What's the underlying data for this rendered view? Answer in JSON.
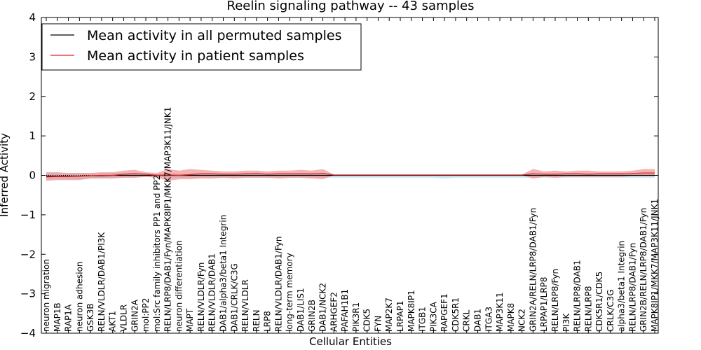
{
  "chart_data": {
    "type": "line",
    "title": "Reelin signaling pathway -- 43 samples",
    "xlabel": "Cellular Entities",
    "ylabel": "Inferred Activity",
    "ylim": [
      -4,
      4
    ],
    "yticks": [
      -4,
      -3,
      -2,
      -1,
      0,
      1,
      2,
      3,
      4
    ],
    "ytick_labels": [
      "−4",
      "−3",
      "−2",
      "−1",
      "0",
      "1",
      "2",
      "3",
      "4"
    ],
    "legend_position": "top-left",
    "categories": [
      "neuron migration",
      "MAP1B",
      "RAP1A",
      "neuron adhesion",
      "GSK3B",
      "RELN/VLDLR/DAB1/PI3K",
      "AKT1",
      "VLDLR",
      "GRIN2A",
      "mol:PP2",
      "mol:Src family inhibitors PP1 and PP2",
      "RELN/LRP8/DAB1/Fyn/MAPK8IP1/MKK7/MAP3K11/JNK1",
      "neuron differentiation",
      "MAPT",
      "RELN/VLDLR/Fyn",
      "RELN/VLDLR/DAB1",
      "DAB1/alpha3/beta1 Integrin",
      "DAB1/CRLK/C3G",
      "RELN/VLDLR",
      "RELN",
      "LRP8",
      "RELN/VLDLR/DAB1/Fyn",
      "long-term memory",
      "DAB1/LIS1",
      "GRIN2B",
      "DAB1/NCK2",
      "ARHGEF2",
      "PAFAH1B1",
      "PIK3R1",
      "CDK5",
      "FYN",
      "MAP2K7",
      "LRPAP1",
      "MAPK8IP1",
      "ITGB1",
      "PIK3CA",
      "RAPGEF1",
      "CDK5R1",
      "CRKL",
      "DAB1",
      "ITGA3",
      "MAP3K11",
      "MAPK8",
      "NCK2",
      "GRIN2A/RELN/LRP8/DAB1/Fyn",
      "LRPAP1/LRP8",
      "RELN/LRP8/Fyn",
      "PI3K",
      "RELN/LRP8/DAB1",
      "RELN/LRP8",
      "CDK5R1/CDK5",
      "CRLK/C3G",
      "alpha3/beta1 Integrin",
      "RELN/LRP8/DAB1/Fyn",
      "GRIN2B/RELN/LRP8/DAB1/Fyn",
      "MAPK8IP1/MKK7/MAP3K11/JNK1"
    ],
    "series": [
      {
        "name": "Mean activity in all permuted samples",
        "color": "#000000",
        "values": [
          -0.02,
          -0.02,
          -0.02,
          -0.02,
          -0.01,
          -0.01,
          0.0,
          0.0,
          0.0,
          0.0,
          0.0,
          0.0,
          0.0,
          0.0,
          0.0,
          0.0,
          0.0,
          0.0,
          0.0,
          0.0,
          0.0,
          0.0,
          0.0,
          0.0,
          0.0,
          0.0,
          0.0,
          0.0,
          0.0,
          0.0,
          0.0,
          0.0,
          0.0,
          0.0,
          0.0,
          0.0,
          0.0,
          0.0,
          0.0,
          0.0,
          0.0,
          0.0,
          0.0,
          0.0,
          0.0,
          0.0,
          0.0,
          0.0,
          0.0,
          0.0,
          0.0,
          0.0,
          0.0,
          0.0,
          0.0,
          0.0
        ],
        "band_upper": [
          0.06,
          0.06,
          0.06,
          0.06,
          0.06,
          0.06,
          0.06,
          0.06,
          0.06,
          0.04,
          0.04,
          0.06,
          0.04,
          0.04,
          0.04,
          0.04,
          0.04,
          0.04,
          0.04,
          0.04,
          0.04,
          0.04,
          0.04,
          0.04,
          0.04,
          0.04,
          0.02,
          0.02,
          0.02,
          0.02,
          0.02,
          0.02,
          0.02,
          0.02,
          0.02,
          0.02,
          0.02,
          0.02,
          0.02,
          0.02,
          0.02,
          0.02,
          0.02,
          0.02,
          0.02,
          0.02,
          0.02,
          0.02,
          0.02,
          0.02,
          0.02,
          0.02,
          0.02,
          0.02,
          0.02,
          0.02
        ],
        "band_lower": [
          -0.1,
          -0.1,
          -0.1,
          -0.1,
          -0.08,
          -0.08,
          -0.06,
          -0.06,
          -0.06,
          -0.04,
          -0.04,
          -0.06,
          -0.06,
          -0.06,
          -0.06,
          -0.06,
          -0.06,
          -0.06,
          -0.06,
          -0.06,
          -0.06,
          -0.06,
          -0.06,
          -0.06,
          -0.06,
          -0.06,
          -0.06,
          -0.06,
          -0.06,
          -0.06,
          -0.06,
          -0.06,
          -0.06,
          -0.06,
          -0.06,
          -0.06,
          -0.08,
          -0.06,
          -0.06,
          -0.06,
          -0.06,
          -0.06,
          -0.06,
          -0.06,
          -0.06,
          -0.06,
          -0.06,
          -0.06,
          -0.06,
          -0.06,
          -0.06,
          -0.06,
          -0.06,
          -0.06,
          -0.06,
          -0.06
        ]
      },
      {
        "name": "Mean activity in patient samples",
        "color": "#d62728",
        "values": [
          -0.04,
          -0.03,
          -0.03,
          -0.02,
          -0.01,
          0.0,
          0.0,
          0.03,
          0.04,
          0.03,
          0.0,
          0.01,
          0.0,
          0.02,
          0.04,
          0.04,
          0.03,
          0.03,
          0.04,
          0.05,
          0.03,
          0.04,
          0.04,
          0.04,
          0.04,
          0.05,
          0.01,
          0.01,
          0.01,
          0.01,
          0.01,
          0.01,
          0.01,
          0.01,
          0.01,
          0.01,
          0.01,
          0.01,
          0.01,
          0.01,
          0.01,
          0.01,
          0.01,
          0.01,
          0.04,
          0.03,
          0.03,
          0.04,
          0.04,
          0.03,
          0.04,
          0.04,
          0.04,
          0.05,
          0.06,
          0.06
        ],
        "band_upper": [
          0.08,
          0.08,
          0.06,
          0.06,
          0.06,
          0.08,
          0.08,
          0.12,
          0.14,
          0.08,
          0.06,
          0.16,
          0.12,
          0.16,
          0.14,
          0.12,
          0.1,
          0.1,
          0.12,
          0.12,
          0.1,
          0.12,
          0.12,
          0.14,
          0.12,
          0.16,
          0.02,
          0.02,
          0.02,
          0.02,
          0.02,
          0.02,
          0.02,
          0.02,
          0.02,
          0.02,
          0.02,
          0.02,
          0.02,
          0.02,
          0.02,
          0.02,
          0.02,
          0.02,
          0.16,
          0.1,
          0.12,
          0.1,
          0.12,
          0.12,
          0.1,
          0.1,
          0.1,
          0.12,
          0.16,
          0.16
        ],
        "band_lower": [
          -0.14,
          -0.12,
          -0.12,
          -0.12,
          -0.08,
          -0.08,
          -0.08,
          -0.06,
          -0.06,
          -0.04,
          -0.06,
          -0.14,
          -0.1,
          -0.1,
          -0.08,
          -0.08,
          -0.06,
          -0.08,
          -0.06,
          -0.06,
          -0.06,
          -0.08,
          -0.06,
          -0.06,
          -0.08,
          -0.1,
          0.0,
          0.0,
          0.0,
          0.0,
          0.0,
          0.0,
          0.0,
          0.0,
          0.0,
          0.0,
          0.0,
          0.0,
          0.0,
          0.0,
          0.0,
          0.0,
          0.0,
          0.0,
          -0.08,
          -0.04,
          -0.06,
          -0.04,
          -0.04,
          -0.04,
          -0.04,
          -0.04,
          -0.04,
          -0.02,
          -0.02,
          -0.02
        ]
      }
    ],
    "colors": {
      "permuted_band": "#add8e6",
      "patient_band": "#f08080",
      "zero_line": "#000000"
    }
  }
}
